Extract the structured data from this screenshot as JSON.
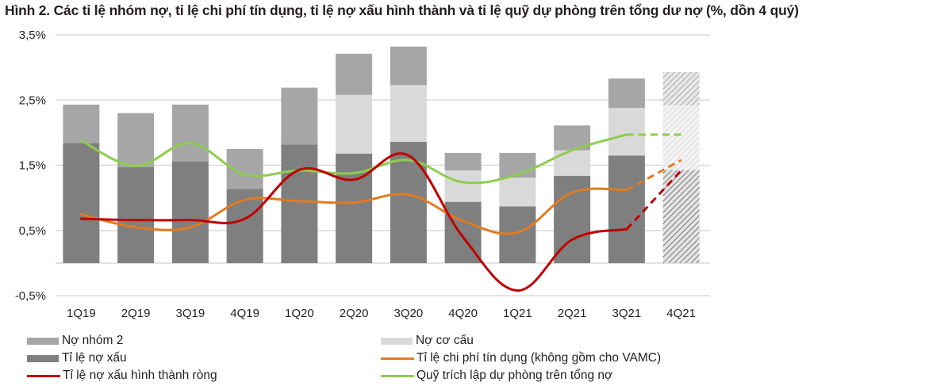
{
  "title": "Hình 2. Các tỉ lệ nhóm nợ, tỉ lệ chi phí tín dụng, tỉ lệ nợ xấu hình thành và tỉ lệ quỹ dự phòng trên tổng dư nợ (%, dồn 4 quý)",
  "colors": {
    "no_nhom_2": "#a6a6a6",
    "no_co_cau": "#d9d9d9",
    "ti_le_no_xau": "#7f7f7f",
    "chi_phi_tin_dung": "#e07b22",
    "no_xau_hinh_thanh_rong": "#c00000",
    "quy_du_phong": "#8ccd4e",
    "gridline": "#d9d9d9"
  },
  "legend": [
    {
      "key": "no_nhom_2",
      "label": "Nợ nhóm 2",
      "kind": "bar"
    },
    {
      "key": "no_co_cau",
      "label": "Nợ cơ cấu",
      "kind": "bar"
    },
    {
      "key": "ti_le_no_xau",
      "label": "Tỉ lệ nợ xấu",
      "kind": "bar"
    },
    {
      "key": "chi_phi_tin_dung",
      "label": "Tỉ lệ chi phí tín dụng (không gồm cho VAMC)",
      "kind": "line"
    },
    {
      "key": "no_xau_hinh_thanh_rong",
      "label": "Tỉ lệ nợ xấu hình thành ròng",
      "kind": "line"
    },
    {
      "key": "quy_du_phong",
      "label": "Quỹ trích lập dự phòng trên tổng nợ",
      "kind": "line"
    }
  ],
  "chart_data": {
    "type": "bar",
    "subtype": "stacked bar + line combo",
    "title": "Hình 2. Các tỉ lệ nhóm nợ, tỉ lệ chi phí tín dụng, tỉ lệ nợ xấu hình thành và tỉ lệ quỹ dự phòng trên tổng dư nợ (%, dồn 4 quý)",
    "xlabel": "",
    "ylabel": "%",
    "ylim": [
      -0.5,
      3.5
    ],
    "yticks": [
      "3,5%",
      "2,5%",
      "1,5%",
      "0,5%",
      "-0,5%"
    ],
    "ytick_values": [
      3.5,
      2.5,
      1.5,
      0.5,
      -0.5
    ],
    "grid": true,
    "legend_position": "bottom",
    "categories": [
      "1Q19",
      "2Q19",
      "3Q19",
      "4Q19",
      "1Q20",
      "2Q20",
      "3Q20",
      "4Q20",
      "1Q21",
      "2Q21",
      "3Q21",
      "4Q21"
    ],
    "forecast_categories": [
      "4Q21"
    ],
    "stacked_bars": [
      {
        "name": "Tỉ lệ nợ xấu",
        "values": [
          1.84,
          1.47,
          1.56,
          1.14,
          1.82,
          1.68,
          1.86,
          0.94,
          0.87,
          1.34,
          1.65,
          1.43
        ]
      },
      {
        "name": "Nợ cơ cấu",
        "values": [
          0,
          0,
          0,
          0,
          0,
          0.9,
          0.87,
          0.48,
          0.44,
          0.39,
          0.73,
          0.99
        ]
      },
      {
        "name": "Nợ nhóm 2",
        "values": [
          0.59,
          0.83,
          0.87,
          0.61,
          0.87,
          0.63,
          0.59,
          0.27,
          0.38,
          0.38,
          0.45,
          0.51
        ]
      }
    ],
    "series": [
      {
        "name": "Tỉ lệ chi phí tín dụng (không gồm cho VAMC)",
        "values": [
          0.75,
          0.55,
          0.55,
          0.97,
          0.95,
          0.93,
          1.05,
          0.65,
          0.47,
          1.08,
          1.12,
          1.58
        ],
        "dashed_from": "3Q21"
      },
      {
        "name": "Tỉ lệ nợ xấu hình thành ròng",
        "values": [
          0.68,
          0.66,
          0.66,
          0.68,
          1.43,
          1.28,
          1.65,
          0.4,
          -0.42,
          0.36,
          0.52,
          1.42
        ],
        "dashed_from": "3Q21"
      },
      {
        "name": "Quỹ trích lập dự phòng trên tổng nợ",
        "values": [
          1.88,
          1.49,
          1.84,
          1.36,
          1.42,
          1.38,
          1.58,
          1.24,
          1.36,
          1.73,
          1.97,
          1.97
        ],
        "dashed_from": "3Q21"
      }
    ]
  }
}
